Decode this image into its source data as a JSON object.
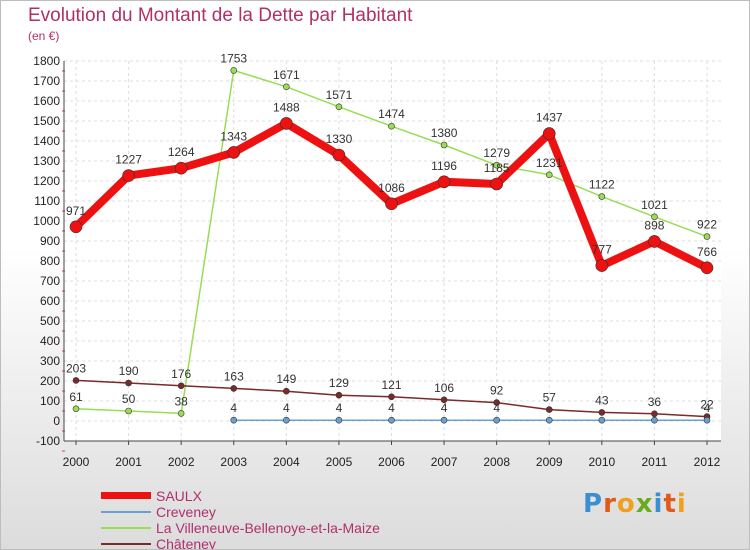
{
  "chart_data": {
    "type": "line",
    "title": "Evolution du Montant de la Dette par Habitant",
    "subtitle": "(en €)",
    "x": [
      "2000",
      "2001",
      "2002",
      "2003",
      "2004",
      "2005",
      "2006",
      "2007",
      "2008",
      "2009",
      "2010",
      "2011",
      "2012"
    ],
    "ylim": [
      -100,
      1800
    ],
    "yticks": [
      -100,
      0,
      100,
      200,
      300,
      400,
      500,
      600,
      700,
      800,
      900,
      1000,
      1100,
      1200,
      1300,
      1400,
      1500,
      1600,
      1700,
      1800
    ],
    "grid": true,
    "legend_position": "bottom-left",
    "series": [
      {
        "name": "SAULX",
        "color": "#ee1111",
        "values": [
          971,
          1227,
          1264,
          1343,
          1488,
          1330,
          1086,
          1196,
          1185,
          1437,
          777,
          898,
          766
        ]
      },
      {
        "name": "Creveney",
        "color": "#6aa0cf",
        "values": [
          null,
          null,
          null,
          4,
          4,
          4,
          4,
          4,
          4,
          4,
          4,
          4,
          4
        ]
      },
      {
        "name": "La Villeneuve-Bellenoye-et-la-Maize",
        "color": "#99dd55",
        "values": [
          61,
          50,
          38,
          1753,
          1671,
          1571,
          1474,
          1380,
          1279,
          1231,
          1122,
          1021,
          922
        ]
      },
      {
        "name": "Châteney",
        "color": "#7a2a2a",
        "values": [
          203,
          190,
          176,
          163,
          149,
          129,
          121,
          106,
          92,
          57,
          43,
          36,
          22
        ]
      }
    ]
  },
  "data_labels": [
    [
      "971",
      "1227",
      "1264",
      "1343",
      "1488",
      "1330",
      "1086",
      "1196",
      "1185",
      "1437",
      "777",
      "898",
      "766"
    ],
    [
      "",
      "",
      "",
      "4",
      "4",
      "4",
      "4",
      "4",
      "4",
      "",
      "",
      "",
      "4"
    ],
    [
      "61",
      "50",
      "38",
      "1753",
      "1671",
      "1571",
      "1474",
      "1380",
      "1279",
      "1231",
      "1122",
      "1021",
      "922"
    ],
    [
      "203",
      "190",
      "176",
      "163",
      "149",
      "129",
      "121",
      "106",
      "92",
      "57",
      "43",
      "36",
      "22"
    ]
  ],
  "logo": {
    "letters": [
      "P",
      "r",
      "o",
      "x",
      "i",
      "t",
      "i"
    ],
    "colors": [
      "#3a8fd0",
      "#e05a1a",
      "#f0a020",
      "#6aaa20",
      "#3a8fd0",
      "#e05a1a",
      "#f0a020"
    ]
  }
}
